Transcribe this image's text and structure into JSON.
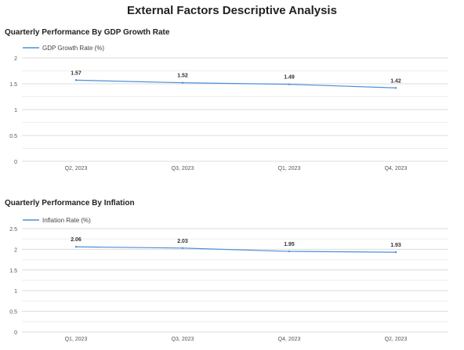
{
  "page": {
    "title": "External Factors Descriptive Analysis"
  },
  "chart_data": [
    {
      "type": "line",
      "title": "Quarterly Performance By GDP Growth Rate",
      "categories": [
        "Q2, 2023",
        "Q3, 2023",
        "Q1, 2023",
        "Q4, 2023"
      ],
      "series": [
        {
          "name": "GDP Growth Rate (%)",
          "values": [
            1.57,
            1.52,
            1.49,
            1.42
          ],
          "color": "#4a90d9"
        }
      ],
      "value_labels": [
        "1.57",
        "1.52",
        "1.49",
        "1.42"
      ],
      "yticks": [
        "0",
        "0.5",
        "1",
        "1.5",
        "2"
      ],
      "ylim": [
        0,
        2
      ],
      "grid": true,
      "legend": "top-left"
    },
    {
      "type": "line",
      "title": "Quarterly Performance By Inflation",
      "categories": [
        "Q1, 2023",
        "Q3, 2023",
        "Q4, 2023",
        "Q2, 2023"
      ],
      "series": [
        {
          "name": "Inflation Rate (%)",
          "values": [
            2.06,
            2.03,
            1.95,
            1.93
          ],
          "color": "#4a90d9"
        }
      ],
      "value_labels": [
        "2.06",
        "2.03",
        "1.95",
        "1.93"
      ],
      "yticks": [
        "0",
        "0.5",
        "1",
        "1.5",
        "2",
        "2.5"
      ],
      "ylim": [
        0,
        2.5
      ],
      "grid": true,
      "legend": "top-left"
    }
  ]
}
